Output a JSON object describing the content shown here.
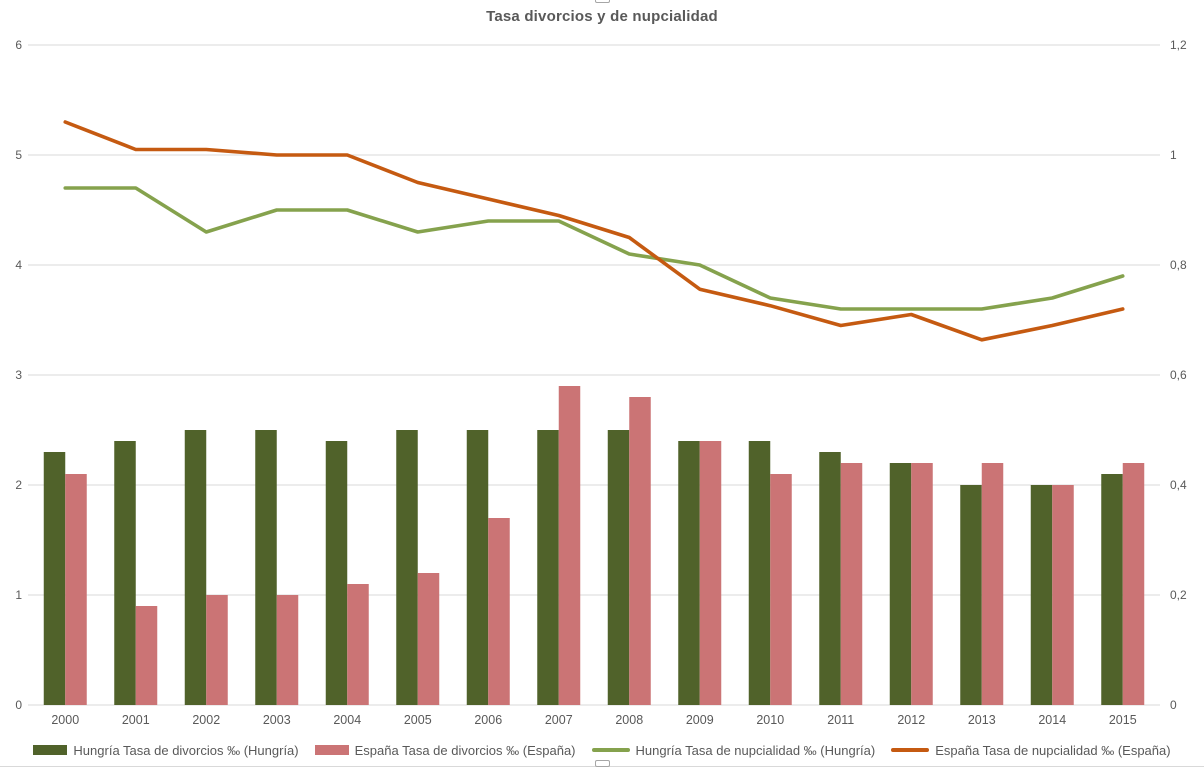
{
  "chart": {
    "title": "Tasa divorcios y de nupcialidad"
  },
  "colors": {
    "bar_hungary": "#50622a",
    "bar_spain": "#cb7475",
    "line_hungary": "#85a24d",
    "line_spain": "#c55a11",
    "grid": "#d9d9d9",
    "axis_text": "#595959",
    "title_text": "#595959",
    "border": "#d9d9d9",
    "handle_border": "#a6a6a6"
  },
  "legend": {
    "items": [
      {
        "label": "Hungría Tasa de divorcios ‰ (Hungría)",
        "swatch": "bar",
        "color_key": "bar_hungary"
      },
      {
        "label": "España Tasa de divorcios ‰ (España)",
        "swatch": "bar",
        "color_key": "bar_spain"
      },
      {
        "label": "Hungría Tasa de nupcialidad ‰ (Hungría)",
        "swatch": "line",
        "color_key": "line_hungary"
      },
      {
        "label": "España Tasa de nupcialidad ‰ (España)",
        "swatch": "line",
        "color_key": "line_spain"
      }
    ]
  },
  "chart_data": {
    "type": "combo-bar-line",
    "title": "Tasa divorcios y de nupcialidad",
    "categories": [
      "2000",
      "2001",
      "2002",
      "2003",
      "2004",
      "2005",
      "2006",
      "2007",
      "2008",
      "2009",
      "2010",
      "2011",
      "2012",
      "2013",
      "2014",
      "2015"
    ],
    "series": [
      {
        "name": "Hungría Tasa de divorcios ‰ (Hungría)",
        "type": "bar",
        "axis": "left",
        "color_key": "bar_hungary",
        "values": [
          2.3,
          2.4,
          2.5,
          2.5,
          2.4,
          2.5,
          2.5,
          2.5,
          2.5,
          2.4,
          2.4,
          2.3,
          2.2,
          2.0,
          2.0,
          2.1
        ]
      },
      {
        "name": "España Tasa de divorcios ‰ (España)",
        "type": "bar",
        "axis": "left",
        "color_key": "bar_spain",
        "values": [
          2.1,
          0.9,
          1.0,
          1.0,
          1.1,
          1.2,
          1.7,
          2.9,
          2.8,
          2.4,
          2.1,
          2.2,
          2.2,
          2.2,
          2.0,
          2.2
        ]
      },
      {
        "name": "Hungría Tasa de nupcialidad ‰ (Hungría)",
        "type": "line",
        "axis": "left",
        "color_key": "line_hungary",
        "values": [
          4.7,
          4.7,
          4.3,
          4.5,
          4.5,
          4.3,
          4.4,
          4.4,
          4.1,
          4.0,
          3.7,
          3.6,
          3.6,
          3.6,
          3.7,
          3.9
        ]
      },
      {
        "name": "España Tasa de nupcialidad ‰ (España)",
        "type": "line",
        "axis": "left",
        "color_key": "line_spain",
        "values": [
          5.3,
          5.05,
          5.05,
          5.0,
          5.0,
          4.75,
          4.6,
          4.45,
          4.25,
          3.78,
          3.63,
          3.45,
          3.55,
          3.32,
          3.45,
          3.6
        ]
      }
    ],
    "left_axis": {
      "min": 0,
      "max": 6,
      "step": 1,
      "tick_labels": [
        "0",
        "1",
        "2",
        "3",
        "4",
        "5",
        "6"
      ]
    },
    "right_axis": {
      "min": 0,
      "max": 1.2,
      "step": 0.2,
      "tick_labels": [
        "0",
        "0,2",
        "0,4",
        "0,6",
        "0,8",
        "1",
        "1,2"
      ]
    },
    "grid": true,
    "legend_position": "bottom"
  }
}
